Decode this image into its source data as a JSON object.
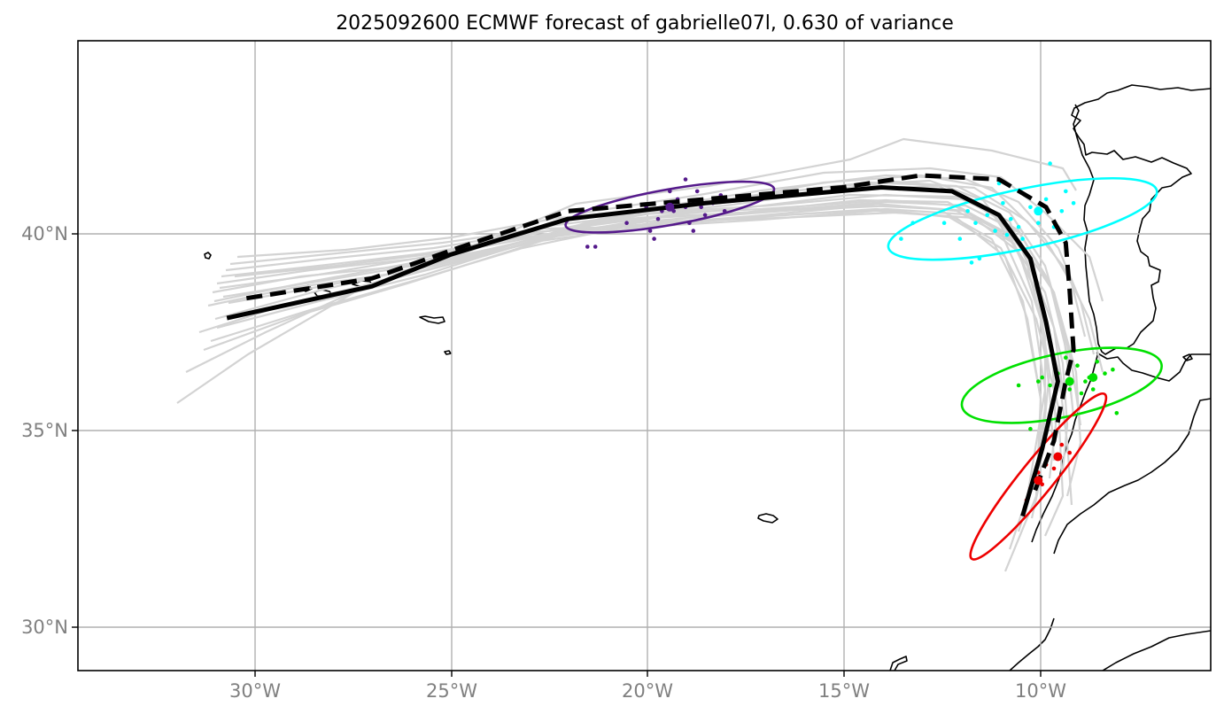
{
  "title": "2025092600 ECMWF forecast of gabrielle07l, 0.630 of variance",
  "x_tick_labels": [
    "30°W",
    "25°W",
    "20°W",
    "15°W",
    "10°W"
  ],
  "y_tick_labels": [
    "40°N",
    "35°N",
    "30°N"
  ],
  "colors": {
    "ensemble": "#d3d3d3",
    "mean_track": "#000000",
    "coast": "#000000",
    "grid": "#b0b0b0",
    "ellipses": [
      "#551a8b",
      "#00ffff",
      "#00e000",
      "#ee0000"
    ]
  },
  "chart_data": {
    "type": "map-track",
    "title": "2025092600 ECMWF forecast of gabrielle07l, 0.630 of variance",
    "lon_range": [
      -34.5,
      -5.6
    ],
    "lat_range": [
      28.9,
      44.8
    ],
    "lon_ticks": [
      -30,
      -25,
      -20,
      -15,
      -10
    ],
    "lat_ticks": [
      40,
      35,
      30
    ],
    "solid_track": [
      [
        -30.7,
        37.8
      ],
      [
        -27,
        38.6
      ],
      [
        -25,
        39.4
      ],
      [
        -22,
        40.3
      ],
      [
        -18.5,
        40.7
      ],
      [
        -14,
        41.1
      ],
      [
        -12.2,
        41.0
      ],
      [
        -11,
        40.4
      ],
      [
        -10.2,
        39.3
      ],
      [
        -9.8,
        37.7
      ],
      [
        -9.5,
        36.2
      ],
      [
        -9.9,
        34.5
      ],
      [
        -10.4,
        32.8
      ]
    ],
    "dashed_track": [
      [
        -30.2,
        38.3
      ],
      [
        -27,
        38.8
      ],
      [
        -25,
        39.5
      ],
      [
        -22,
        40.5
      ],
      [
        -18.5,
        40.8
      ],
      [
        -15,
        41.1
      ],
      [
        -13,
        41.4
      ],
      [
        -11,
        41.3
      ],
      [
        -9.8,
        40.6
      ],
      [
        -9.3,
        39.7
      ],
      [
        -9.2,
        38.5
      ],
      [
        -9.1,
        37.0
      ],
      [
        -9.3,
        36.2
      ],
      [
        -9.6,
        34.7
      ],
      [
        -10.1,
        33.4
      ]
    ],
    "ellipses": [
      {
        "lon": -19.4,
        "lat": 40.6,
        "rx_deg": 2.7,
        "ry_deg": 0.45,
        "angle": -10,
        "color": "#551a8b"
      },
      {
        "lon": -10.4,
        "lat": 40.3,
        "rx_deg": 3.5,
        "ry_deg": 0.75,
        "angle": -12,
        "color": "#00ffff"
      },
      {
        "lon": -9.4,
        "lat": 36.1,
        "rx_deg": 2.6,
        "ry_deg": 0.8,
        "angle": -12,
        "color": "#00e000"
      },
      {
        "lon": -10.0,
        "lat": 33.8,
        "rx_deg": 2.7,
        "ry_deg": 0.42,
        "angle": -51,
        "color": "#ee0000"
      }
    ],
    "ellipse_centers": [
      {
        "lon": -19.4,
        "lat": 40.6,
        "color": "#551a8b"
      },
      {
        "lon": -10.0,
        "lat": 40.5,
        "color": "#00ffff"
      },
      {
        "lon": -9.2,
        "lat": 36.2,
        "color": "#00e000"
      },
      {
        "lon": -8.6,
        "lat": 36.3,
        "color": "#00e000"
      },
      {
        "lon": -9.5,
        "lat": 34.3,
        "color": "#ee0000"
      },
      {
        "lon": -10.0,
        "lat": 33.7,
        "color": "#ee0000"
      }
    ],
    "member_points": [
      {
        "color": "#551a8b",
        "pts": [
          [
            -21.5,
            39.6
          ],
          [
            -21.3,
            39.6
          ],
          [
            -20.5,
            40.2
          ],
          [
            -20.2,
            40.5
          ],
          [
            -19.9,
            40.0
          ],
          [
            -19.8,
            39.8
          ],
          [
            -19.6,
            40.5
          ],
          [
            -19.5,
            40.7
          ],
          [
            -19.3,
            40.5
          ],
          [
            -19.2,
            40.8
          ],
          [
            -19.0,
            40.6
          ],
          [
            -18.9,
            40.2
          ],
          [
            -18.7,
            41.0
          ],
          [
            -18.5,
            40.4
          ],
          [
            -18.3,
            40.7
          ],
          [
            -18.1,
            40.9
          ],
          [
            -19.0,
            41.3
          ],
          [
            -18.0,
            40.5
          ],
          [
            -19.7,
            40.3
          ],
          [
            -20.0,
            40.6
          ],
          [
            -19.4,
            41.0
          ],
          [
            -18.6,
            40.6
          ],
          [
            -18.8,
            40.0
          ]
        ]
      },
      {
        "color": "#00ffff",
        "pts": [
          [
            -13.5,
            39.8
          ],
          [
            -13.2,
            40.2
          ],
          [
            -12.4,
            40.2
          ],
          [
            -12.0,
            39.8
          ],
          [
            -11.8,
            40.5
          ],
          [
            -11.6,
            40.2
          ],
          [
            -11.5,
            39.3
          ],
          [
            -11.3,
            40.4
          ],
          [
            -11.1,
            40.0
          ],
          [
            -11.0,
            41.2
          ],
          [
            -10.9,
            40.7
          ],
          [
            -10.7,
            40.3
          ],
          [
            -10.5,
            40.1
          ],
          [
            -10.4,
            39.8
          ],
          [
            -10.2,
            40.6
          ],
          [
            -10.0,
            40.2
          ],
          [
            -9.8,
            40.8
          ],
          [
            -9.6,
            40.1
          ],
          [
            -9.4,
            40.5
          ],
          [
            -9.3,
            41.0
          ],
          [
            -9.7,
            41.7
          ],
          [
            -9.1,
            40.7
          ],
          [
            -11.7,
            39.2
          ],
          [
            -10.8,
            39.9
          ]
        ]
      },
      {
        "color": "#00e000",
        "pts": [
          [
            -10.5,
            36.1
          ],
          [
            -10.2,
            35.0
          ],
          [
            -9.9,
            36.3
          ],
          [
            -9.7,
            36.1
          ],
          [
            -9.5,
            36.4
          ],
          [
            -9.3,
            36.8
          ],
          [
            -9.0,
            36.6
          ],
          [
            -8.9,
            35.9
          ],
          [
            -8.7,
            36.3
          ],
          [
            -8.5,
            36.7
          ],
          [
            -8.3,
            36.4
          ],
          [
            -8.1,
            36.5
          ],
          [
            -8.0,
            35.4
          ],
          [
            -8.8,
            36.2
          ],
          [
            -9.2,
            36.0
          ],
          [
            -10.0,
            36.2
          ],
          [
            -8.6,
            36.0
          ]
        ]
      },
      {
        "color": "#ee0000",
        "pts": [
          [
            -10.2,
            33.5
          ],
          [
            -10.0,
            33.9
          ],
          [
            -9.8,
            34.1
          ],
          [
            -9.6,
            34.0
          ],
          [
            -9.4,
            34.6
          ],
          [
            -9.2,
            34.4
          ],
          [
            -10.3,
            33.2
          ],
          [
            -9.9,
            33.6
          ]
        ]
      }
    ]
  }
}
